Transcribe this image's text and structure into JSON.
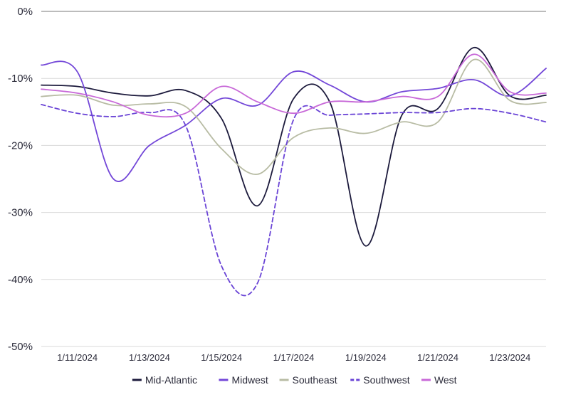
{
  "chart_data": {
    "type": "line",
    "x": [
      "1/10/2024",
      "1/11/2024",
      "1/12/2024",
      "1/13/2024",
      "1/14/2024",
      "1/15/2024",
      "1/16/2024",
      "1/17/2024",
      "1/18/2024",
      "1/19/2024",
      "1/20/2024",
      "1/21/2024",
      "1/22/2024",
      "1/23/2024",
      "1/24/2024"
    ],
    "x_tick_labels": [
      "1/11/2024",
      "1/13/2024",
      "1/15/2024",
      "1/17/2024",
      "1/19/2024",
      "1/21/2024",
      "1/23/2024"
    ],
    "y_tick_labels": [
      "0%",
      "-10%",
      "-20%",
      "-30%",
      "-40%",
      "-50%"
    ],
    "ylim": [
      -50,
      0
    ],
    "grid": true,
    "legend": "bottom",
    "series": [
      {
        "name": "Mid-Atlantic",
        "color": "#1c1a3c",
        "dash": "solid",
        "values": [
          -11,
          -11.2,
          -12.2,
          -12.6,
          -11.8,
          -16,
          -29,
          -13,
          -13.5,
          -35,
          -15.5,
          -14.5,
          -5.4,
          -12.6,
          -12.5
        ]
      },
      {
        "name": "Midwest",
        "color": "#7347d8",
        "dash": "solid",
        "values": [
          -8,
          -9,
          -25,
          -20,
          -17,
          -13,
          -14,
          -9,
          -11,
          -13.5,
          -12,
          -11.5,
          -10.2,
          -12.6,
          -8.5
        ]
      },
      {
        "name": "Southeast",
        "color": "#b8bca4",
        "dash": "solid",
        "values": [
          -12.7,
          -12.5,
          -14,
          -13.8,
          -14.2,
          -20.5,
          -24.3,
          -18.8,
          -17.4,
          -18.2,
          -16.5,
          -16.5,
          -7.2,
          -13.3,
          -13.6
        ]
      },
      {
        "name": "Southwest",
        "color": "#6a44d6",
        "dash": "dashed",
        "values": [
          -13.9,
          -15.2,
          -15.7,
          -15.1,
          -17,
          -38,
          -40.5,
          -16.1,
          -15.5,
          -15.3,
          -15.1,
          -15.1,
          -14.5,
          -15.2,
          -16.5
        ]
      },
      {
        "name": "West",
        "color": "#c869d8",
        "dash": "solid",
        "values": [
          -11.6,
          -12.2,
          -13.5,
          -15.5,
          -15.2,
          -11.2,
          -13.5,
          -15.2,
          -13.5,
          -13.5,
          -12.7,
          -12.7,
          -6.4,
          -12,
          -12.2
        ]
      }
    ]
  }
}
